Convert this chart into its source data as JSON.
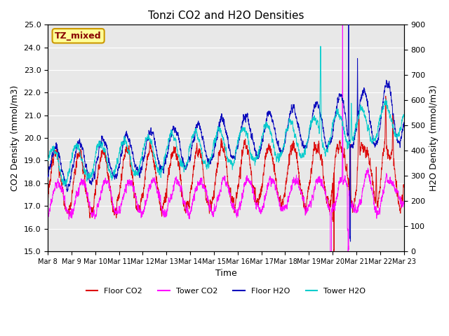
{
  "title": "Tonzi CO2 and H2O Densities",
  "xlabel": "Time",
  "ylabel_left": "CO2 Density (mmol/m3)",
  "ylabel_right": "H2O Density (mmol/m3)",
  "annotation_text": "TZ_mixed",
  "annotation_color": "#880000",
  "annotation_bg": "#ffff99",
  "annotation_border": "#cc9900",
  "ylim_left": [
    15.0,
    25.0
  ],
  "ylim_right": [
    0,
    900
  ],
  "yticks_left": [
    15.0,
    16.0,
    17.0,
    18.0,
    19.0,
    20.0,
    21.0,
    22.0,
    23.0,
    24.0,
    25.0
  ],
  "yticks_right": [
    0,
    100,
    200,
    300,
    400,
    500,
    600,
    700,
    800,
    900
  ],
  "xtick_labels": [
    "Mar 8",
    "Mar 9",
    "Mar 10",
    "Mar 11",
    "Mar 12",
    "Mar 13",
    "Mar 14",
    "Mar 15",
    "Mar 16",
    "Mar 17",
    "Mar 18",
    "Mar 19",
    "Mar 20",
    "Mar 21",
    "Mar 22",
    "Mar 23"
  ],
  "colors": {
    "floor_co2": "#dd0000",
    "tower_co2": "#ff00ff",
    "floor_h2o": "#0000bb",
    "tower_h2o": "#00cccc"
  },
  "legend_labels": [
    "Floor CO2",
    "Tower CO2",
    "Floor H2O",
    "Tower H2O"
  ],
  "background_color": "#e8e8e8",
  "grid_color": "#ffffff",
  "n_points": 4320,
  "random_seed": 7
}
